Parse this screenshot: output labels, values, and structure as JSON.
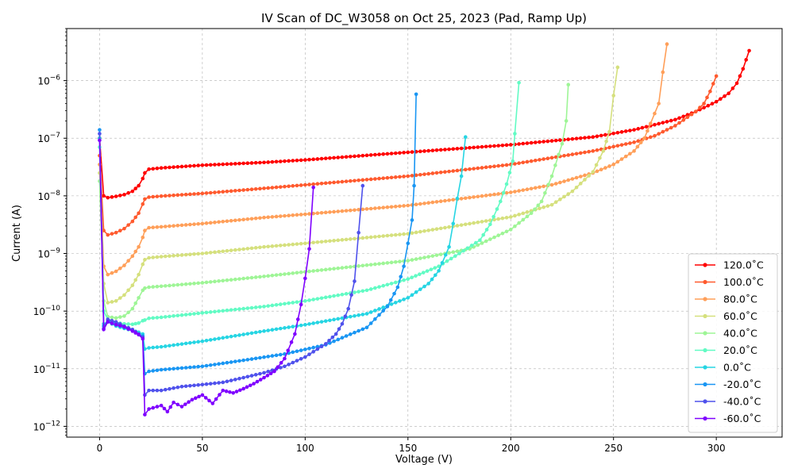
{
  "chart_data": {
    "type": "line",
    "title": "IV Scan of DC_W3058 on Oct 25, 2023 (Pad, Ramp Up)",
    "xlabel": "Voltage (V)",
    "ylabel": "Current (A)",
    "xlim": [
      -16,
      332
    ],
    "ylim": [
      6.5e-13,
      8e-06
    ],
    "yscale": "log",
    "xticks": [
      0,
      50,
      100,
      150,
      200,
      250,
      300
    ],
    "yticks": [
      1e-12,
      1e-11,
      1e-10,
      1e-09,
      1e-08,
      1e-07,
      1e-06
    ],
    "ytick_labels": [
      {
        "base": "10",
        "exp": "−12"
      },
      {
        "base": "10",
        "exp": "−11"
      },
      {
        "base": "10",
        "exp": "−10"
      },
      {
        "base": "10",
        "exp": "−9"
      },
      {
        "base": "10",
        "exp": "−8"
      },
      {
        "base": "10",
        "exp": "−7"
      },
      {
        "base": "10",
        "exp": "−6"
      }
    ],
    "grid": true,
    "legend_position": "bottom-right",
    "series": [
      {
        "name": "120.0$^\\circ$C",
        "label": "120.0˚C",
        "color": "#ff0000",
        "points": [
          [
            0,
            1e-07
          ],
          [
            2,
            1e-08
          ],
          [
            4,
            9.3e-09
          ],
          [
            8,
            9.8e-09
          ],
          [
            12,
            1.05e-08
          ],
          [
            16,
            1.2e-08
          ],
          [
            19,
            1.5e-08
          ],
          [
            21,
            2e-08
          ],
          [
            22,
            2.5e-08
          ],
          [
            24,
            2.9e-08
          ],
          [
            30,
            3.05e-08
          ],
          [
            50,
            3.4e-08
          ],
          [
            80,
            3.8e-08
          ],
          [
            100,
            4.2e-08
          ],
          [
            150,
            5.7e-08
          ],
          [
            200,
            7.7e-08
          ],
          [
            240,
            1.05e-07
          ],
          [
            260,
            1.4e-07
          ],
          [
            280,
            2.1e-07
          ],
          [
            290,
            2.9e-07
          ],
          [
            300,
            4.3e-07
          ],
          [
            306,
            6e-07
          ],
          [
            310,
            9e-07
          ],
          [
            313,
            1.6e-06
          ],
          [
            316,
            3.3e-06
          ]
        ]
      },
      {
        "name": "100.0$^\\circ$C",
        "label": "100.0˚C",
        "color": "#ff5a2e",
        "points": [
          [
            0,
            5e-08
          ],
          [
            2,
            2.5e-09
          ],
          [
            4,
            2.1e-09
          ],
          [
            8,
            2.3e-09
          ],
          [
            12,
            2.7e-09
          ],
          [
            16,
            3.6e-09
          ],
          [
            19,
            5e-09
          ],
          [
            21,
            7.2e-09
          ],
          [
            22,
            8.8e-09
          ],
          [
            24,
            9.5e-09
          ],
          [
            30,
            9.9e-09
          ],
          [
            50,
            1.1e-08
          ],
          [
            80,
            1.35e-08
          ],
          [
            100,
            1.55e-08
          ],
          [
            150,
            2.2e-08
          ],
          [
            200,
            3.5e-08
          ],
          [
            240,
            6e-08
          ],
          [
            260,
            8.5e-08
          ],
          [
            270,
            1.1e-07
          ],
          [
            280,
            1.65e-07
          ],
          [
            290,
            2.9e-07
          ],
          [
            294,
            4e-07
          ],
          [
            297,
            6.5e-07
          ],
          [
            300,
            1.2e-06
          ]
        ]
      },
      {
        "name": "80.0$^\\circ$C",
        "label": "80.0˚C",
        "color": "#ff9f59",
        "points": [
          [
            0,
            3.5e-08
          ],
          [
            2,
            6e-10
          ],
          [
            4,
            4.3e-10
          ],
          [
            8,
            4.9e-10
          ],
          [
            12,
            6.2e-10
          ],
          [
            16,
            9e-10
          ],
          [
            19,
            1.3e-09
          ],
          [
            21,
            1.9e-09
          ],
          [
            22,
            2.5e-09
          ],
          [
            24,
            2.8e-09
          ],
          [
            30,
            2.9e-09
          ],
          [
            50,
            3.3e-09
          ],
          [
            80,
            4.2e-09
          ],
          [
            100,
            4.8e-09
          ],
          [
            150,
            6.8e-09
          ],
          [
            200,
            1.15e-08
          ],
          [
            220,
            1.55e-08
          ],
          [
            240,
            2.5e-08
          ],
          [
            250,
            3.5e-08
          ],
          [
            260,
            6e-08
          ],
          [
            265,
            1e-07
          ],
          [
            268,
            1.8e-07
          ],
          [
            272,
            4e-07
          ],
          [
            274,
            1.4e-06
          ],
          [
            276,
            4.3e-06
          ]
        ]
      },
      {
        "name": "60.0$^\\circ$C",
        "label": "60.0˚C",
        "color": "#d5e07d",
        "points": [
          [
            0,
            2.5e-08
          ],
          [
            2,
            3e-10
          ],
          [
            4,
            1.4e-10
          ],
          [
            8,
            1.5e-10
          ],
          [
            12,
            1.9e-10
          ],
          [
            16,
            2.8e-10
          ],
          [
            19,
            4.3e-10
          ],
          [
            21,
            6.5e-10
          ],
          [
            22,
            7.8e-10
          ],
          [
            24,
            8.4e-10
          ],
          [
            30,
            8.8e-10
          ],
          [
            50,
            1e-09
          ],
          [
            80,
            1.3e-09
          ],
          [
            100,
            1.5e-09
          ],
          [
            150,
            2.2e-09
          ],
          [
            200,
            4.3e-09
          ],
          [
            220,
            7e-09
          ],
          [
            230,
            1.2e-08
          ],
          [
            240,
            2.6e-08
          ],
          [
            245,
            6e-08
          ],
          [
            248,
            1.3e-07
          ],
          [
            250,
            5.5e-07
          ],
          [
            252,
            1.7e-06
          ]
        ]
      },
      {
        "name": "40.0$^\\circ$C",
        "label": "40.0˚C",
        "color": "#9ef596",
        "points": [
          [
            0,
            1.8e-08
          ],
          [
            2,
            1.5e-10
          ],
          [
            4,
            8e-11
          ],
          [
            8,
            7.6e-11
          ],
          [
            12,
            8.2e-11
          ],
          [
            16,
            1.1e-10
          ],
          [
            19,
            1.7e-10
          ],
          [
            21,
            2.3e-10
          ],
          [
            22,
            2.5e-10
          ],
          [
            24,
            2.6e-10
          ],
          [
            30,
            2.7e-10
          ],
          [
            50,
            3.1e-10
          ],
          [
            80,
            4e-10
          ],
          [
            100,
            4.8e-10
          ],
          [
            150,
            7.5e-10
          ],
          [
            180,
            1.2e-09
          ],
          [
            200,
            2.6e-09
          ],
          [
            210,
            5e-09
          ],
          [
            215,
            8e-09
          ],
          [
            220,
            2.2e-08
          ],
          [
            225,
            8e-08
          ],
          [
            227,
            2e-07
          ],
          [
            228,
            8.5e-07
          ]
        ]
      },
      {
        "name": "20.0$^\\circ$C",
        "label": "20.0˚C",
        "color": "#62fbc4",
        "points": [
          [
            0,
            7e-08
          ],
          [
            2,
            1e-10
          ],
          [
            4,
            7.2e-11
          ],
          [
            8,
            6.3e-11
          ],
          [
            12,
            6e-11
          ],
          [
            16,
            5.9e-11
          ],
          [
            19,
            6.2e-11
          ],
          [
            21,
            6.8e-11
          ],
          [
            22,
            7e-11
          ],
          [
            24,
            7.5e-11
          ],
          [
            30,
            7.8e-11
          ],
          [
            50,
            9.3e-11
          ],
          [
            80,
            1.2e-10
          ],
          [
            100,
            1.5e-10
          ],
          [
            130,
            2.3e-10
          ],
          [
            150,
            3.6e-10
          ],
          [
            165,
            6e-10
          ],
          [
            175,
            1e-09
          ],
          [
            185,
            1.7e-09
          ],
          [
            190,
            3.2e-09
          ],
          [
            195,
            8e-09
          ],
          [
            198,
            1.6e-08
          ],
          [
            201,
            4e-08
          ],
          [
            202,
            1.2e-07
          ],
          [
            204,
            9.2e-07
          ]
        ]
      },
      {
        "name": "0.0$^\\circ$C",
        "label": "0.0˚C",
        "color": "#26d5e3",
        "points": [
          [
            0,
            1e-07
          ],
          [
            2,
            6e-11
          ],
          [
            4,
            6.5e-11
          ],
          [
            8,
            5.5e-11
          ],
          [
            12,
            5e-11
          ],
          [
            16,
            4.6e-11
          ],
          [
            19,
            4.3e-11
          ],
          [
            21,
            4e-11
          ],
          [
            22,
            2.2e-11
          ],
          [
            24,
            2.3e-11
          ],
          [
            30,
            2.4e-11
          ],
          [
            50,
            3e-11
          ],
          [
            80,
            4.5e-11
          ],
          [
            100,
            5.8e-11
          ],
          [
            130,
            9e-11
          ],
          [
            150,
            1.7e-10
          ],
          [
            160,
            3e-10
          ],
          [
            165,
            5e-10
          ],
          [
            170,
            1.3e-09
          ],
          [
            172,
            3.3e-09
          ],
          [
            174,
            9e-09
          ],
          [
            176,
            2.2e-08
          ],
          [
            178,
            1.05e-07
          ]
        ]
      },
      {
        "name": "-20.0$^\\circ$C",
        "label": "-20.0˚C",
        "color": "#1996f3",
        "points": [
          [
            0,
            1.4e-07
          ],
          [
            2,
            5.5e-11
          ],
          [
            4,
            6.8e-11
          ],
          [
            8,
            6.2e-11
          ],
          [
            12,
            5.2e-11
          ],
          [
            16,
            4.6e-11
          ],
          [
            19,
            4e-11
          ],
          [
            21,
            3.7e-11
          ],
          [
            22,
            8.2e-12
          ],
          [
            24,
            9e-12
          ],
          [
            30,
            9.6e-12
          ],
          [
            50,
            1.1e-11
          ],
          [
            70,
            1.4e-11
          ],
          [
            90,
            1.8e-11
          ],
          [
            110,
            2.6e-11
          ],
          [
            120,
            3.7e-11
          ],
          [
            130,
            5.2e-11
          ],
          [
            140,
            1.2e-10
          ],
          [
            145,
            2.6e-10
          ],
          [
            148,
            6e-10
          ],
          [
            150,
            1.5e-09
          ],
          [
            152,
            3.8e-09
          ],
          [
            153,
            1.5e-08
          ],
          [
            154,
            5.8e-07
          ]
        ]
      },
      {
        "name": "-40.0$^\\circ$C",
        "label": "-40.0˚C",
        "color": "#4f51ec",
        "points": [
          [
            0,
            1.2e-07
          ],
          [
            2,
            5e-11
          ],
          [
            4,
            7.2e-11
          ],
          [
            8,
            6.5e-11
          ],
          [
            12,
            5.5e-11
          ],
          [
            16,
            4.8e-11
          ],
          [
            19,
            4e-11
          ],
          [
            21,
            3.5e-11
          ],
          [
            22,
            3.5e-12
          ],
          [
            24,
            4.2e-12
          ],
          [
            30,
            4.2e-12
          ],
          [
            40,
            4.9e-12
          ],
          [
            50,
            5.3e-12
          ],
          [
            60,
            5.8e-12
          ],
          [
            70,
            7e-12
          ],
          [
            80,
            8.5e-12
          ],
          [
            90,
            1.1e-11
          ],
          [
            100,
            1.6e-11
          ],
          [
            110,
            2.7e-11
          ],
          [
            115,
            4e-11
          ],
          [
            118,
            6e-11
          ],
          [
            121,
            1.1e-10
          ],
          [
            124,
            3.3e-10
          ],
          [
            126,
            2.3e-09
          ],
          [
            128,
            1.5e-08
          ]
        ]
      },
      {
        "name": "-60.0$^\\circ$C",
        "label": "-60.0˚C",
        "color": "#7f00ff",
        "points": [
          [
            0,
            9.2e-08
          ],
          [
            2,
            4.8e-11
          ],
          [
            4,
            6.5e-11
          ],
          [
            8,
            5.8e-11
          ],
          [
            12,
            5.3e-11
          ],
          [
            16,
            4.5e-11
          ],
          [
            19,
            3.9e-11
          ],
          [
            21,
            3.3e-11
          ],
          [
            22,
            1.6e-12
          ],
          [
            24,
            2e-12
          ],
          [
            30,
            2.3e-12
          ],
          [
            33,
            1.8e-12
          ],
          [
            36,
            2.6e-12
          ],
          [
            40,
            2.2e-12
          ],
          [
            45,
            2.9e-12
          ],
          [
            50,
            3.5e-12
          ],
          [
            55,
            2.5e-12
          ],
          [
            60,
            4.2e-12
          ],
          [
            65,
            3.8e-12
          ],
          [
            70,
            4.5e-12
          ],
          [
            75,
            5.5e-12
          ],
          [
            80,
            7e-12
          ],
          [
            85,
            9e-12
          ],
          [
            90,
            1.5e-11
          ],
          [
            95,
            4e-11
          ],
          [
            98,
            1.3e-10
          ],
          [
            100,
            3.7e-10
          ],
          [
            102,
            1.2e-09
          ],
          [
            104,
            1.4e-08
          ]
        ]
      }
    ]
  }
}
